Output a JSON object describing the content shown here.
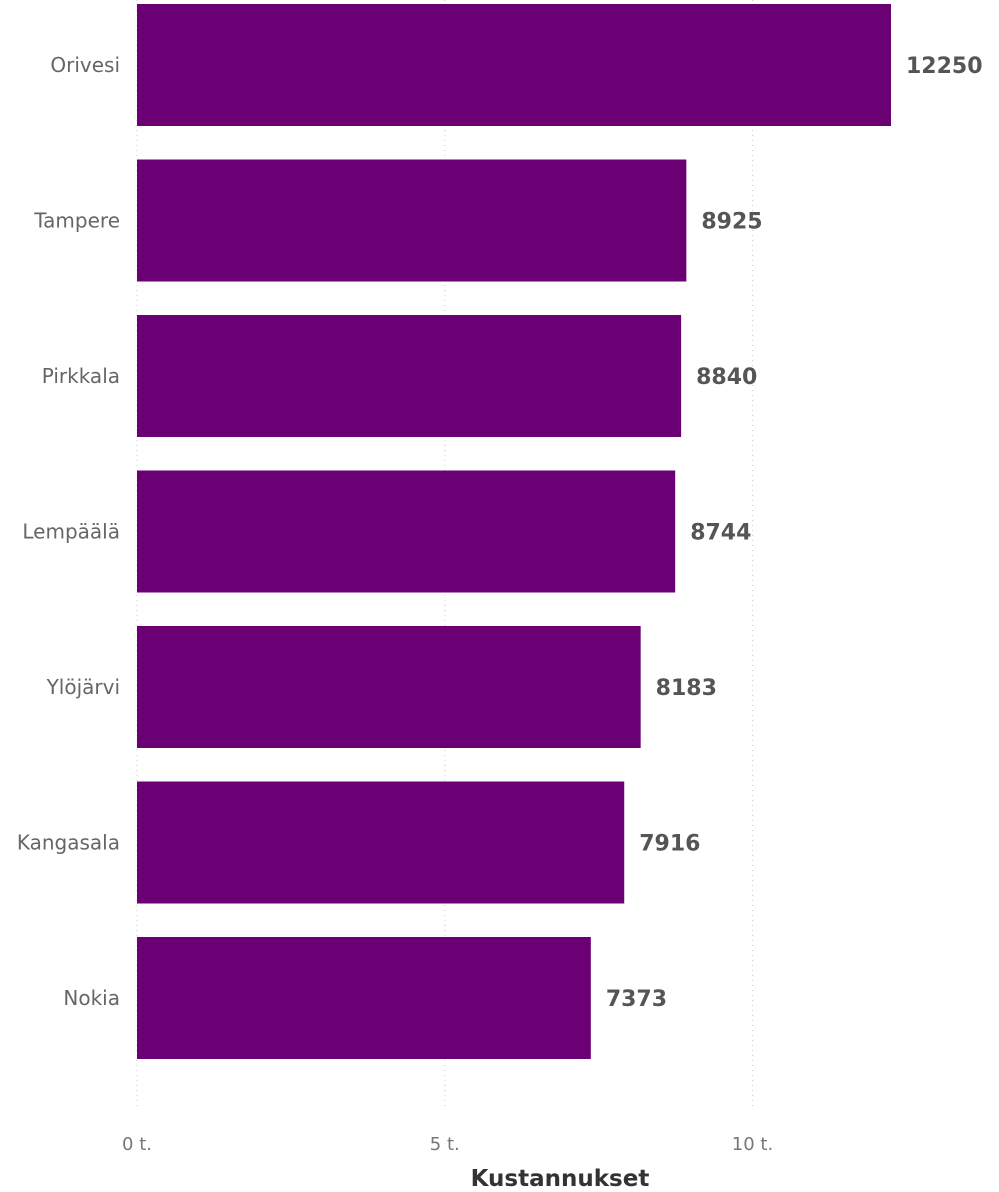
{
  "chart_data": {
    "type": "bar",
    "orientation": "horizontal",
    "categories": [
      "Orivesi",
      "Tampere",
      "Pirkkala",
      "Lempäälä",
      "Ylöjärvi",
      "Kangasala",
      "Nokia"
    ],
    "values": [
      12250,
      8925,
      8840,
      8744,
      8183,
      7916,
      7373
    ],
    "value_labels": [
      "12250",
      "8925",
      "8840",
      "8744",
      "8183",
      "7916",
      "7373"
    ],
    "xlabel": "Kustannukset",
    "ylabel": "",
    "xlim": [
      0,
      12250
    ],
    "x_ticks": [
      0,
      5000,
      10000
    ],
    "x_tick_labels": [
      "0 t.",
      "5 t.",
      "10 t."
    ],
    "grid": "vertical dotted",
    "bar_color": "#6a0073"
  }
}
